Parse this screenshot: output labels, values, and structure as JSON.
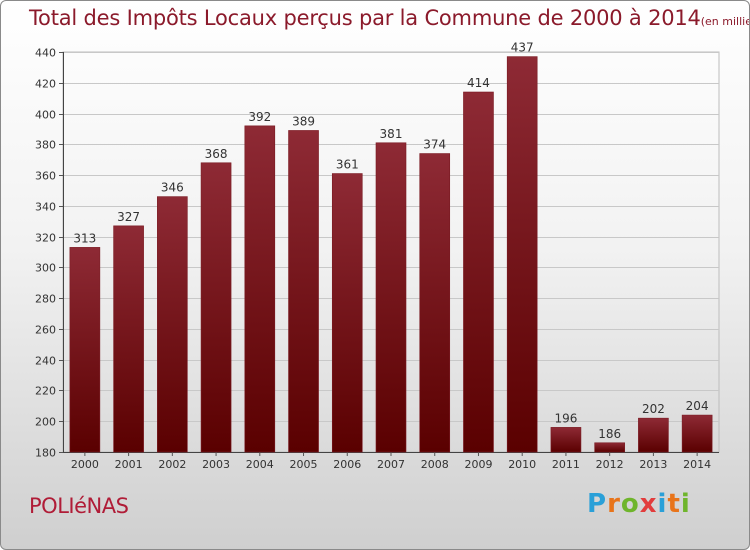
{
  "header": {
    "title": "Total des Impôts Locaux perçus par la Commune de 2000 à 2014",
    "unit": "(en milliers d'€)"
  },
  "footer": {
    "commune": "POLIéNAS",
    "logo": "Proxiti"
  },
  "colors": {
    "title": "#8b1a2b",
    "bar_top": "#8e2a35",
    "bar_bottom": "#5a0000",
    "commune": "#b01c37"
  },
  "chart_data": {
    "type": "bar",
    "title": "Total des Impôts Locaux perçus par la Commune de 2000 à 2014",
    "ylabel": "en milliers d'€",
    "xlabel": "",
    "categories": [
      "2000",
      "2001",
      "2002",
      "2003",
      "2004",
      "2005",
      "2006",
      "2007",
      "2008",
      "2009",
      "2010",
      "2011",
      "2012",
      "2013",
      "2014"
    ],
    "values": [
      313,
      327,
      346,
      368,
      392,
      389,
      361,
      381,
      374,
      414,
      437,
      196,
      186,
      202,
      204
    ],
    "ylim": [
      180,
      440
    ],
    "yticks": [
      180,
      200,
      220,
      240,
      260,
      280,
      300,
      320,
      340,
      360,
      380,
      400,
      420,
      440
    ],
    "grid": true
  }
}
